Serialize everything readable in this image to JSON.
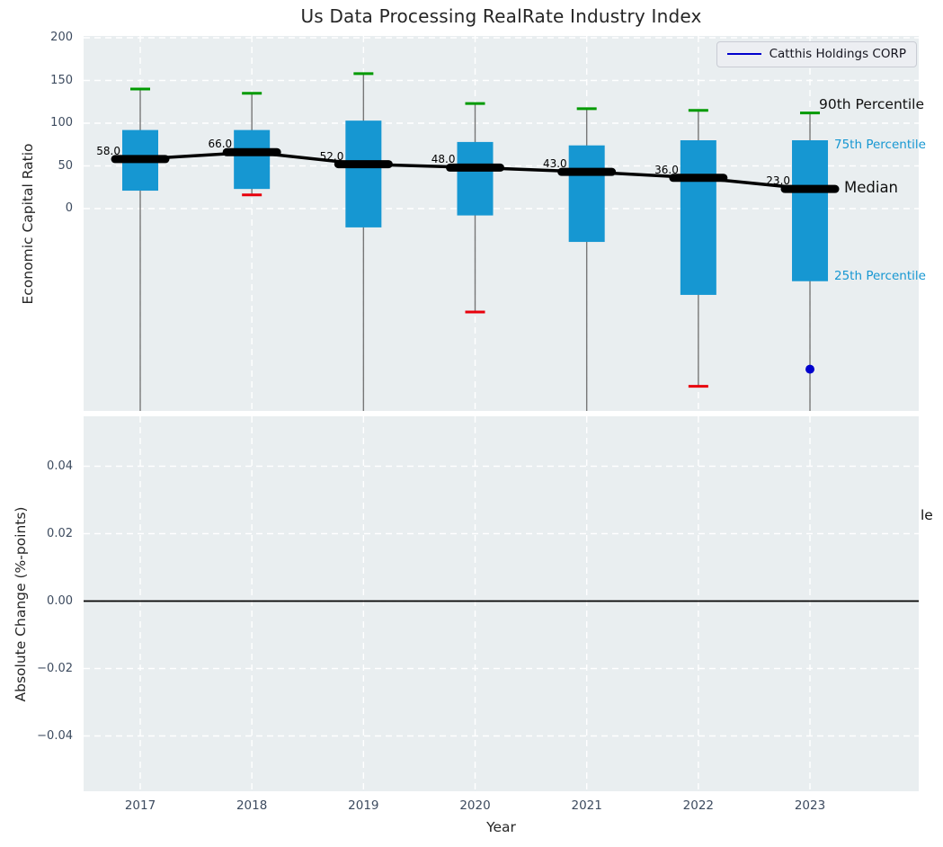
{
  "title": "Us Data Processing RealRate Industry Index",
  "legend": {
    "label": "Catthis Holdings CORP"
  },
  "right_labels": {
    "p90": "90th Percentile",
    "p75": "75th Percentile",
    "median": "Median",
    "p25": "25th Percentile"
  },
  "colors": {
    "box": "#1697d2",
    "cap_high": "#009a00",
    "cap_low": "#e8000b",
    "whisker": "#767676",
    "median": "#000000",
    "company": "#0000cd",
    "plot_bg": "#e9eef0",
    "grid": "#ffffff",
    "tick": "#3d4b5f",
    "zero_line": "#000000"
  },
  "chart_data": [
    {
      "type": "box",
      "title": "Us Data Processing RealRate Industry Index",
      "ylabel": "Economic Capital Ratio",
      "yticks": [
        200,
        150,
        100,
        50,
        0
      ],
      "ylim": [
        -237,
        202
      ],
      "grid": true,
      "legend_position": "upper right",
      "categories": [
        2017,
        2018,
        2019,
        2020,
        2021,
        2022,
        2023
      ],
      "boxes": [
        {
          "year": 2017,
          "p90": 140,
          "p75": 92,
          "median": 58,
          "p25": 21,
          "whisker_low": null
        },
        {
          "year": 2018,
          "p90": 135,
          "p75": 92,
          "median": 66,
          "p25": 23,
          "whisker_low": 16
        },
        {
          "year": 2019,
          "p90": 158,
          "p75": 103,
          "median": 52,
          "p25": -22,
          "whisker_low": null
        },
        {
          "year": 2020,
          "p90": 123,
          "p75": 78,
          "median": 48,
          "p25": -8,
          "whisker_low": -121
        },
        {
          "year": 2021,
          "p90": 117,
          "p75": 74,
          "median": 43,
          "p25": -39,
          "whisker_low": null
        },
        {
          "year": 2022,
          "p90": 115,
          "p75": 80,
          "median": 36,
          "p25": -101,
          "whisker_low": -208
        },
        {
          "year": 2023,
          "p90": 112,
          "p75": 80,
          "median": 23,
          "p25": -85,
          "whisker_low": null
        }
      ],
      "median_series": [
        58,
        66,
        52,
        48,
        43,
        36,
        23
      ],
      "median_labels": [
        "58.0",
        "66.0",
        "52.0",
        "48.0",
        "43.0",
        "36.0",
        "23.0"
      ],
      "company_series": {
        "name": "Catthis Holdings CORP",
        "points": [
          {
            "year": 2023,
            "value": -188
          }
        ]
      }
    },
    {
      "type": "line",
      "ylabel": "Absolute Change (%-points)",
      "xlabel": "Year",
      "yticks": [
        0.04,
        0.02,
        0,
        -0.02,
        -0.04
      ],
      "ytick_labels": [
        "0.04",
        "0.02",
        "0.00",
        "−0.02",
        "−0.04"
      ],
      "ylim": [
        -0.056,
        0.055
      ],
      "grid": true,
      "zero_line": 0.0,
      "xticks": [
        "2017",
        "2018",
        "2019",
        "2020",
        "2021",
        "2022",
        "2023"
      ],
      "clipped_right_label": "le",
      "series": []
    }
  ]
}
